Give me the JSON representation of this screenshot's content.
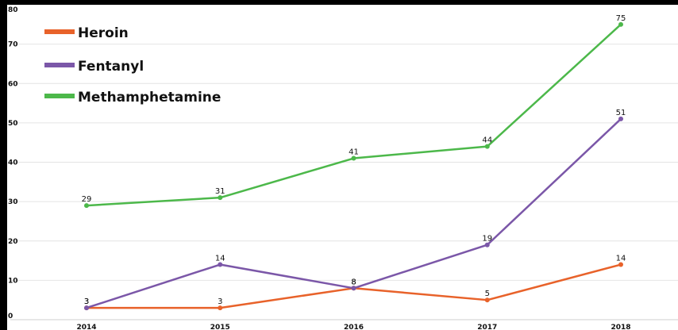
{
  "chart_data": {
    "type": "line",
    "categories": [
      "2014",
      "2015",
      "2016",
      "2017",
      "2018"
    ],
    "series": [
      {
        "name": "Heroin",
        "color": "#e8622a",
        "values": [
          3,
          3,
          8,
          5,
          14
        ]
      },
      {
        "name": "Fentanyl",
        "color": "#7b57a8",
        "values": [
          3,
          14,
          8,
          19,
          51
        ]
      },
      {
        "name": "Methamphetamine",
        "color": "#4cb84a",
        "values": [
          29,
          31,
          41,
          44,
          75
        ]
      }
    ],
    "title": "",
    "xlabel": "",
    "ylabel": "",
    "ylim": [
      0,
      80
    ],
    "yticks": [
      0,
      10,
      20,
      30,
      40,
      50,
      60,
      70,
      80
    ],
    "grid": "horizontal",
    "legend_position": "top-left",
    "background": "#ffffff",
    "frame_color": "#000000"
  }
}
